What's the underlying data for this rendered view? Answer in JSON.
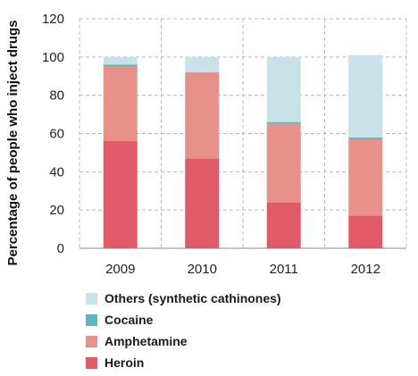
{
  "chart_data": {
    "type": "bar",
    "stacked": true,
    "categories": [
      "2009",
      "2010",
      "2011",
      "2012"
    ],
    "series": [
      {
        "name": "Heroin",
        "color": "#e05a68",
        "values": [
          56,
          47,
          24,
          17
        ]
      },
      {
        "name": "Amphetamine",
        "color": "#e8918a",
        "values": [
          39,
          45,
          41,
          40
        ]
      },
      {
        "name": "Cocaine",
        "color": "#5bb8bd",
        "values": [
          1,
          0,
          1,
          1
        ]
      },
      {
        "name": "Others (synthetic cathinones)",
        "color": "#c9e2ea",
        "values": [
          4,
          8,
          34,
          43
        ]
      }
    ],
    "ylabel": "Percentage of people who inject drugs",
    "xlabel": "",
    "ylim": [
      0,
      120
    ],
    "yticks": [
      0,
      20,
      40,
      60,
      80,
      100,
      120
    ],
    "grid": true,
    "legend_position": "bottom"
  }
}
